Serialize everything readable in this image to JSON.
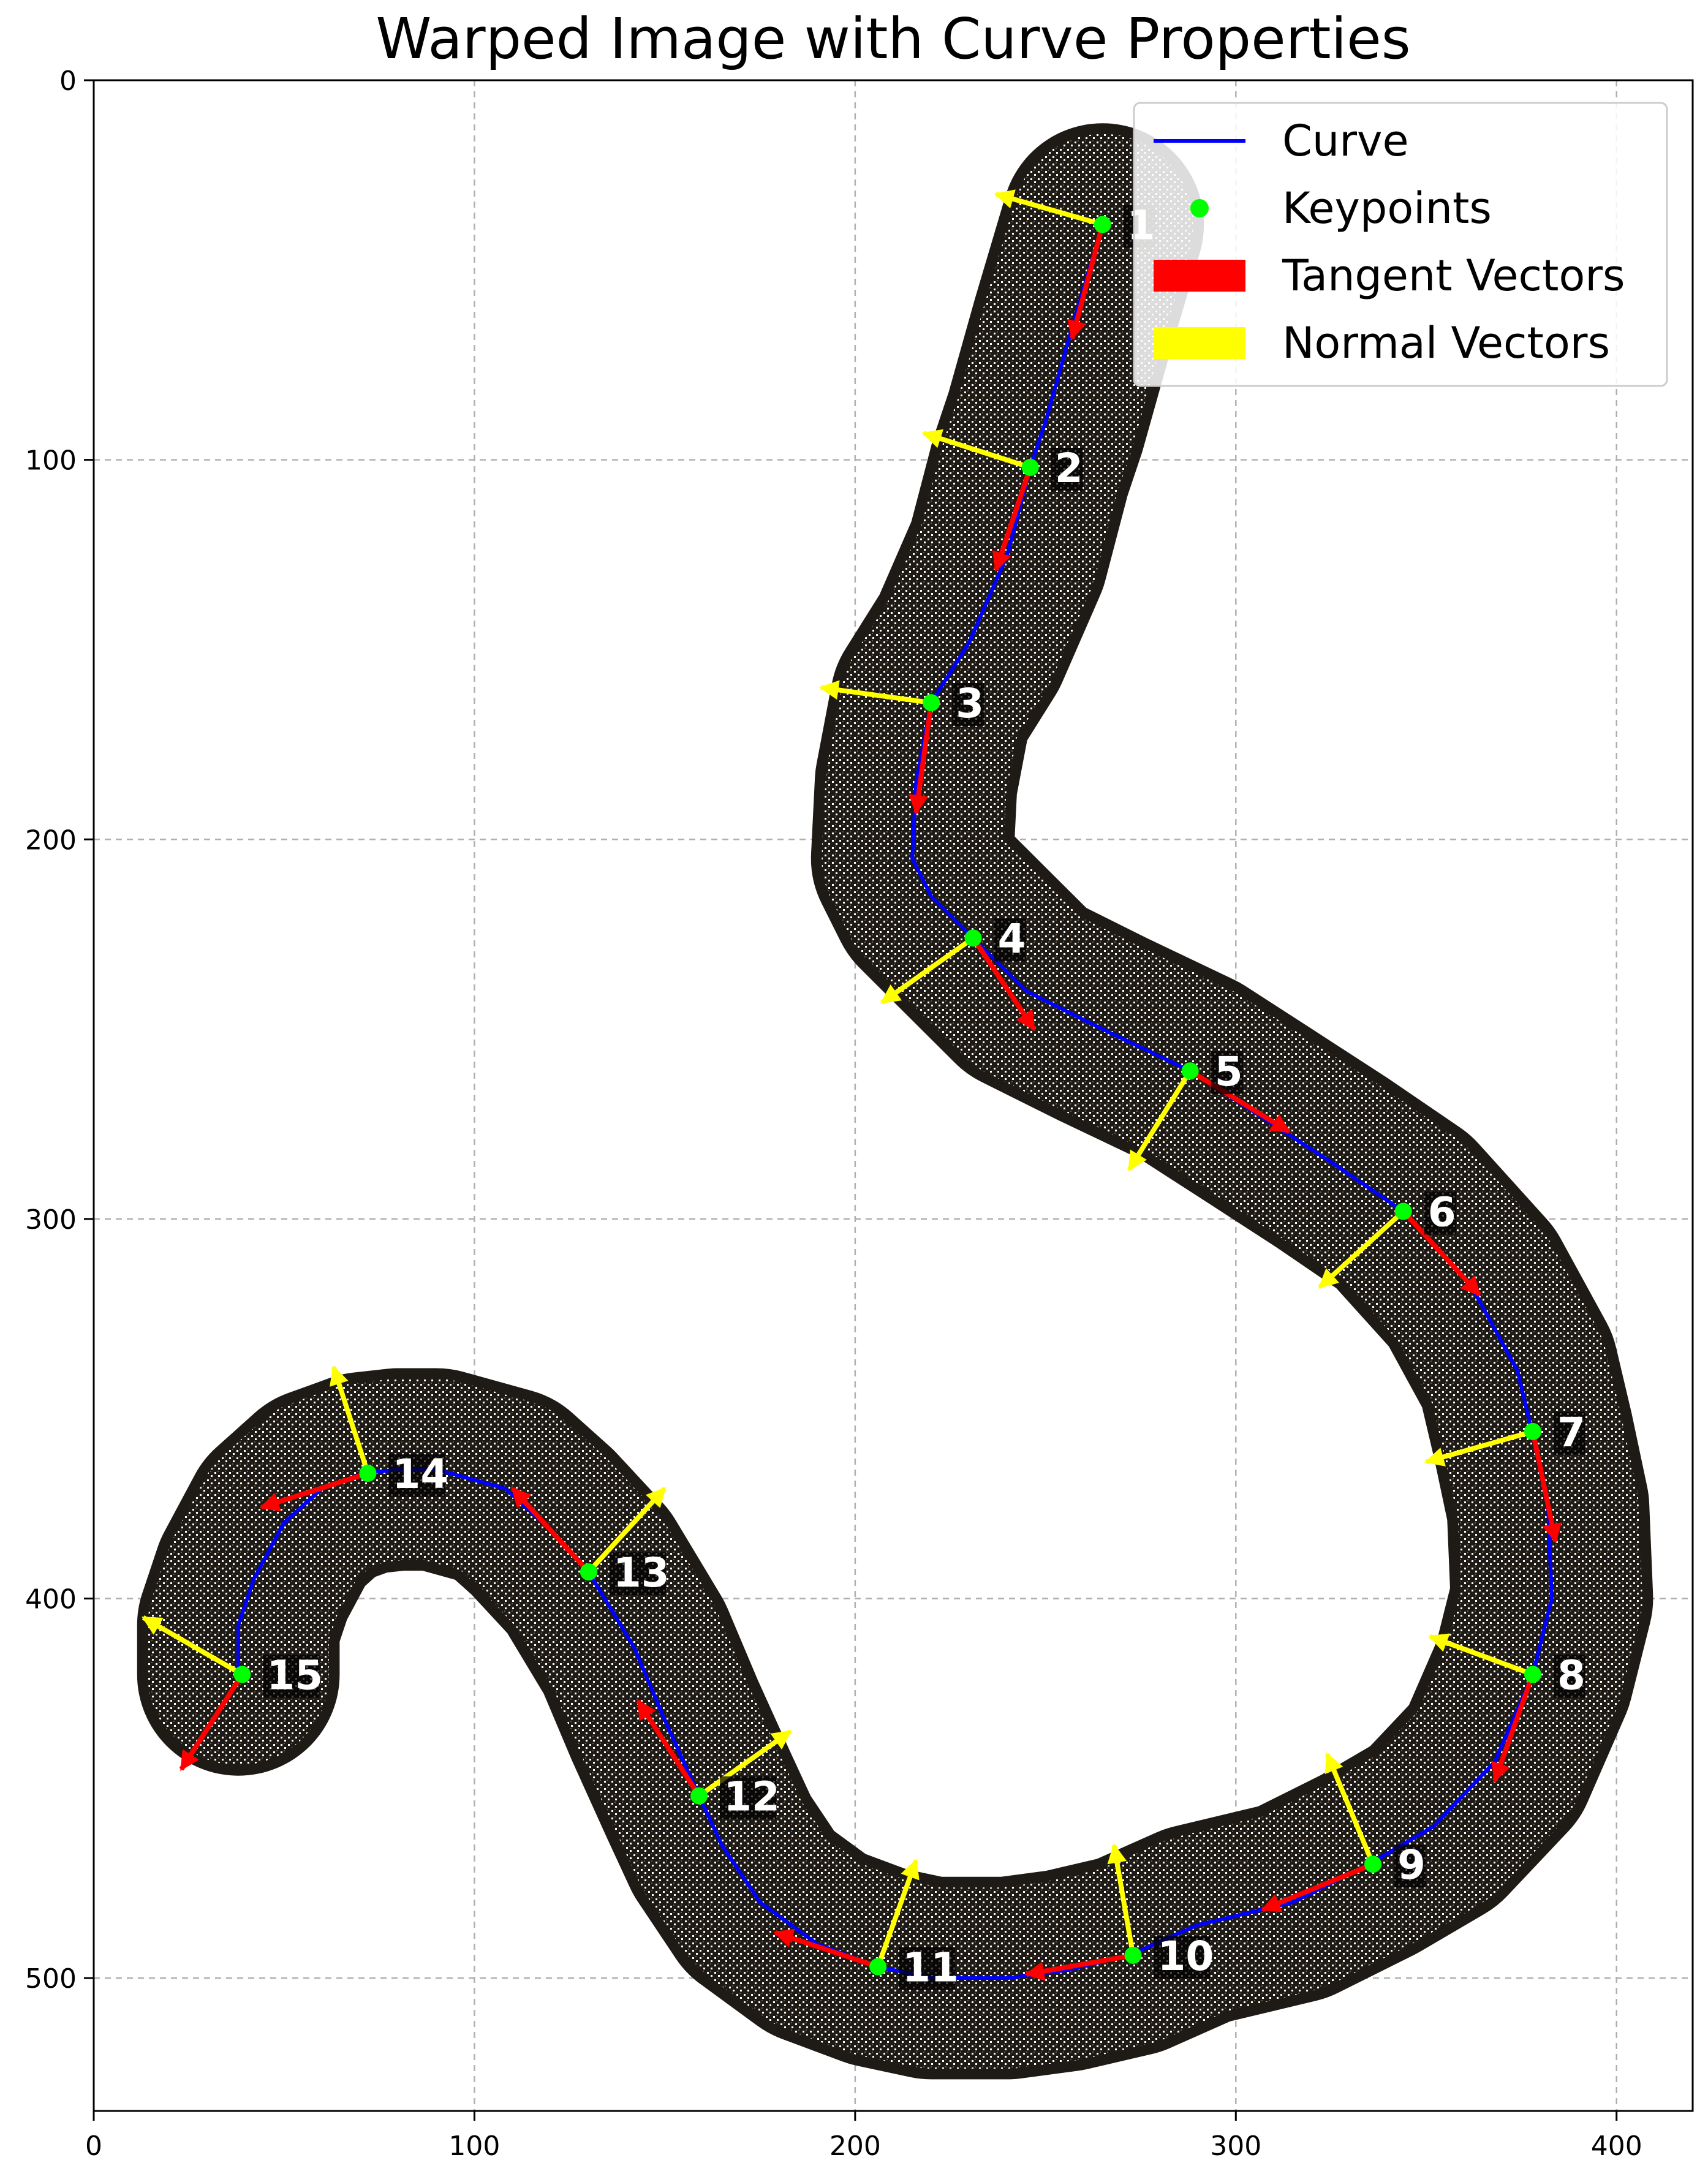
{
  "chart_data": {
    "type": "line",
    "title": "Warped Image with Curve Properties",
    "xlabel": "",
    "ylabel": "",
    "xlim": [
      0,
      420
    ],
    "ylim": [
      535,
      0
    ],
    "x_ticks": [
      0,
      100,
      200,
      300,
      400
    ],
    "y_ticks": [
      0,
      100,
      200,
      300,
      400,
      500
    ],
    "grid": true,
    "legend_position": "top-right",
    "legend": [
      {
        "label": "Curve",
        "kind": "line",
        "color": "#0000ff"
      },
      {
        "label": "Keypoints",
        "kind": "marker",
        "color": "#00ff00"
      },
      {
        "label": "Tangent Vectors",
        "kind": "patch",
        "color": "#ff0000"
      },
      {
        "label": "Normal Vectors",
        "kind": "patch",
        "color": "#ffff00"
      }
    ],
    "band_color": "#1e1a15",
    "band_width": 28,
    "curve": {
      "name": "Curve",
      "color": "#0000ff",
      "points": [
        [
          265,
          38
        ],
        [
          257,
          65
        ],
        [
          250,
          90
        ],
        [
          246,
          102
        ],
        [
          240,
          125
        ],
        [
          230,
          148
        ],
        [
          220,
          164
        ],
        [
          216,
          185
        ],
        [
          215,
          205
        ],
        [
          220,
          215
        ],
        [
          231,
          226
        ],
        [
          245,
          240
        ],
        [
          265,
          250
        ],
        [
          288,
          261
        ],
        [
          305,
          272
        ],
        [
          325,
          285
        ],
        [
          344,
          298
        ],
        [
          362,
          318
        ],
        [
          374,
          340
        ],
        [
          378,
          357
        ],
        [
          382,
          376
        ],
        [
          383,
          400
        ],
        [
          378,
          420
        ],
        [
          368,
          443
        ],
        [
          352,
          460
        ],
        [
          335,
          470
        ],
        [
          315,
          480
        ],
        [
          290,
          486
        ],
        [
          272,
          494
        ],
        [
          255,
          498
        ],
        [
          240,
          500
        ],
        [
          220,
          500
        ],
        [
          206,
          497
        ],
        [
          190,
          491
        ],
        [
          175,
          480
        ],
        [
          165,
          465
        ],
        [
          159,
          452
        ],
        [
          150,
          432
        ],
        [
          142,
          413
        ],
        [
          130,
          393
        ],
        [
          118,
          380
        ],
        [
          108,
          371
        ],
        [
          90,
          366
        ],
        [
          80,
          366
        ],
        [
          71,
          367
        ],
        [
          60,
          371
        ],
        [
          50,
          380
        ],
        [
          42,
          395
        ],
        [
          38,
          407
        ],
        [
          38,
          420
        ]
      ]
    },
    "keypoints": {
      "name": "Keypoints",
      "color": "#00ff00",
      "points": [
        {
          "label": "1",
          "x": 265,
          "y": 38,
          "tangent": [
            -8,
            30
          ],
          "normal": [
            -28,
            -8
          ]
        },
        {
          "label": "2",
          "x": 246,
          "y": 102,
          "tangent": [
            -9,
            27
          ],
          "normal": [
            -28,
            -9
          ]
        },
        {
          "label": "3",
          "x": 220,
          "y": 164,
          "tangent": [
            -4,
            29
          ],
          "normal": [
            -29,
            -4
          ]
        },
        {
          "label": "4",
          "x": 231,
          "y": 226,
          "tangent": [
            16,
            24
          ],
          "normal": [
            -24,
            17
          ]
        },
        {
          "label": "5",
          "x": 288,
          "y": 261,
          "tangent": [
            26,
            16
          ],
          "normal": [
            -16,
            26
          ]
        },
        {
          "label": "6",
          "x": 344,
          "y": 298,
          "tangent": [
            20,
            22
          ],
          "normal": [
            -22,
            20
          ]
        },
        {
          "label": "7",
          "x": 378,
          "y": 356,
          "tangent": [
            6,
            29
          ],
          "normal": [
            -28,
            8
          ]
        },
        {
          "label": "8",
          "x": 378,
          "y": 420,
          "tangent": [
            -10,
            28
          ],
          "normal": [
            -27,
            -10
          ]
        },
        {
          "label": "9",
          "x": 336,
          "y": 470,
          "tangent": [
            -29,
            12
          ],
          "normal": [
            -12,
            -29
          ]
        },
        {
          "label": "10",
          "x": 273,
          "y": 494,
          "tangent": [
            -28,
            5
          ],
          "normal": [
            -5,
            -29
          ]
        },
        {
          "label": "11",
          "x": 206,
          "y": 497,
          "tangent": [
            -27,
            -9
          ],
          "normal": [
            10,
            -28
          ]
        },
        {
          "label": "12",
          "x": 159,
          "y": 452,
          "tangent": [
            -16,
            -25
          ],
          "normal": [
            24,
            -17
          ]
        },
        {
          "label": "13",
          "x": 130,
          "y": 393,
          "tangent": [
            -20,
            -22
          ],
          "normal": [
            20,
            -22
          ]
        },
        {
          "label": "14",
          "x": 72,
          "y": 367,
          "tangent": [
            -28,
            9
          ],
          "normal": [
            -9,
            -28
          ]
        },
        {
          "label": "15",
          "x": 39,
          "y": 420,
          "tangent": [
            -16,
            25
          ],
          "normal": [
            -26,
            -15
          ]
        }
      ]
    },
    "tangent_color": "#ff0000",
    "normal_color": "#ffff00"
  }
}
